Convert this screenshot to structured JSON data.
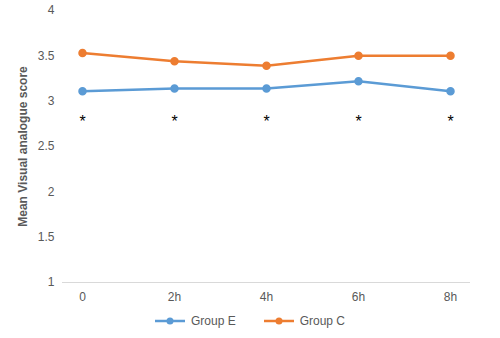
{
  "chart_data": {
    "type": "line",
    "y_label": "Mean Visual analogue score",
    "categories": [
      "0",
      "2h",
      "4h",
      "6h",
      "8h"
    ],
    "series": [
      {
        "name": "Group E",
        "color": "#5b9bd5",
        "marker": "circle",
        "values": [
          3.11,
          3.14,
          3.14,
          3.22,
          3.11
        ]
      },
      {
        "name": "Group C",
        "color": "#ed7d31",
        "marker": "circle",
        "values": [
          3.53,
          3.44,
          3.39,
          3.5,
          3.5
        ]
      }
    ],
    "ylim": [
      1,
      4
    ],
    "yticks": [
      1,
      1.5,
      2,
      2.5,
      3,
      3.5,
      4
    ],
    "grid": false,
    "legend": "bottom",
    "annotations": [
      {
        "text": "*",
        "x": "0",
        "y": 2.82
      },
      {
        "text": "*",
        "x": "2h",
        "y": 2.82
      },
      {
        "text": "*",
        "x": "4h",
        "y": 2.82
      },
      {
        "text": "*",
        "x": "6h",
        "y": 2.82
      },
      {
        "text": "*",
        "x": "8h",
        "y": 2.82
      }
    ]
  }
}
